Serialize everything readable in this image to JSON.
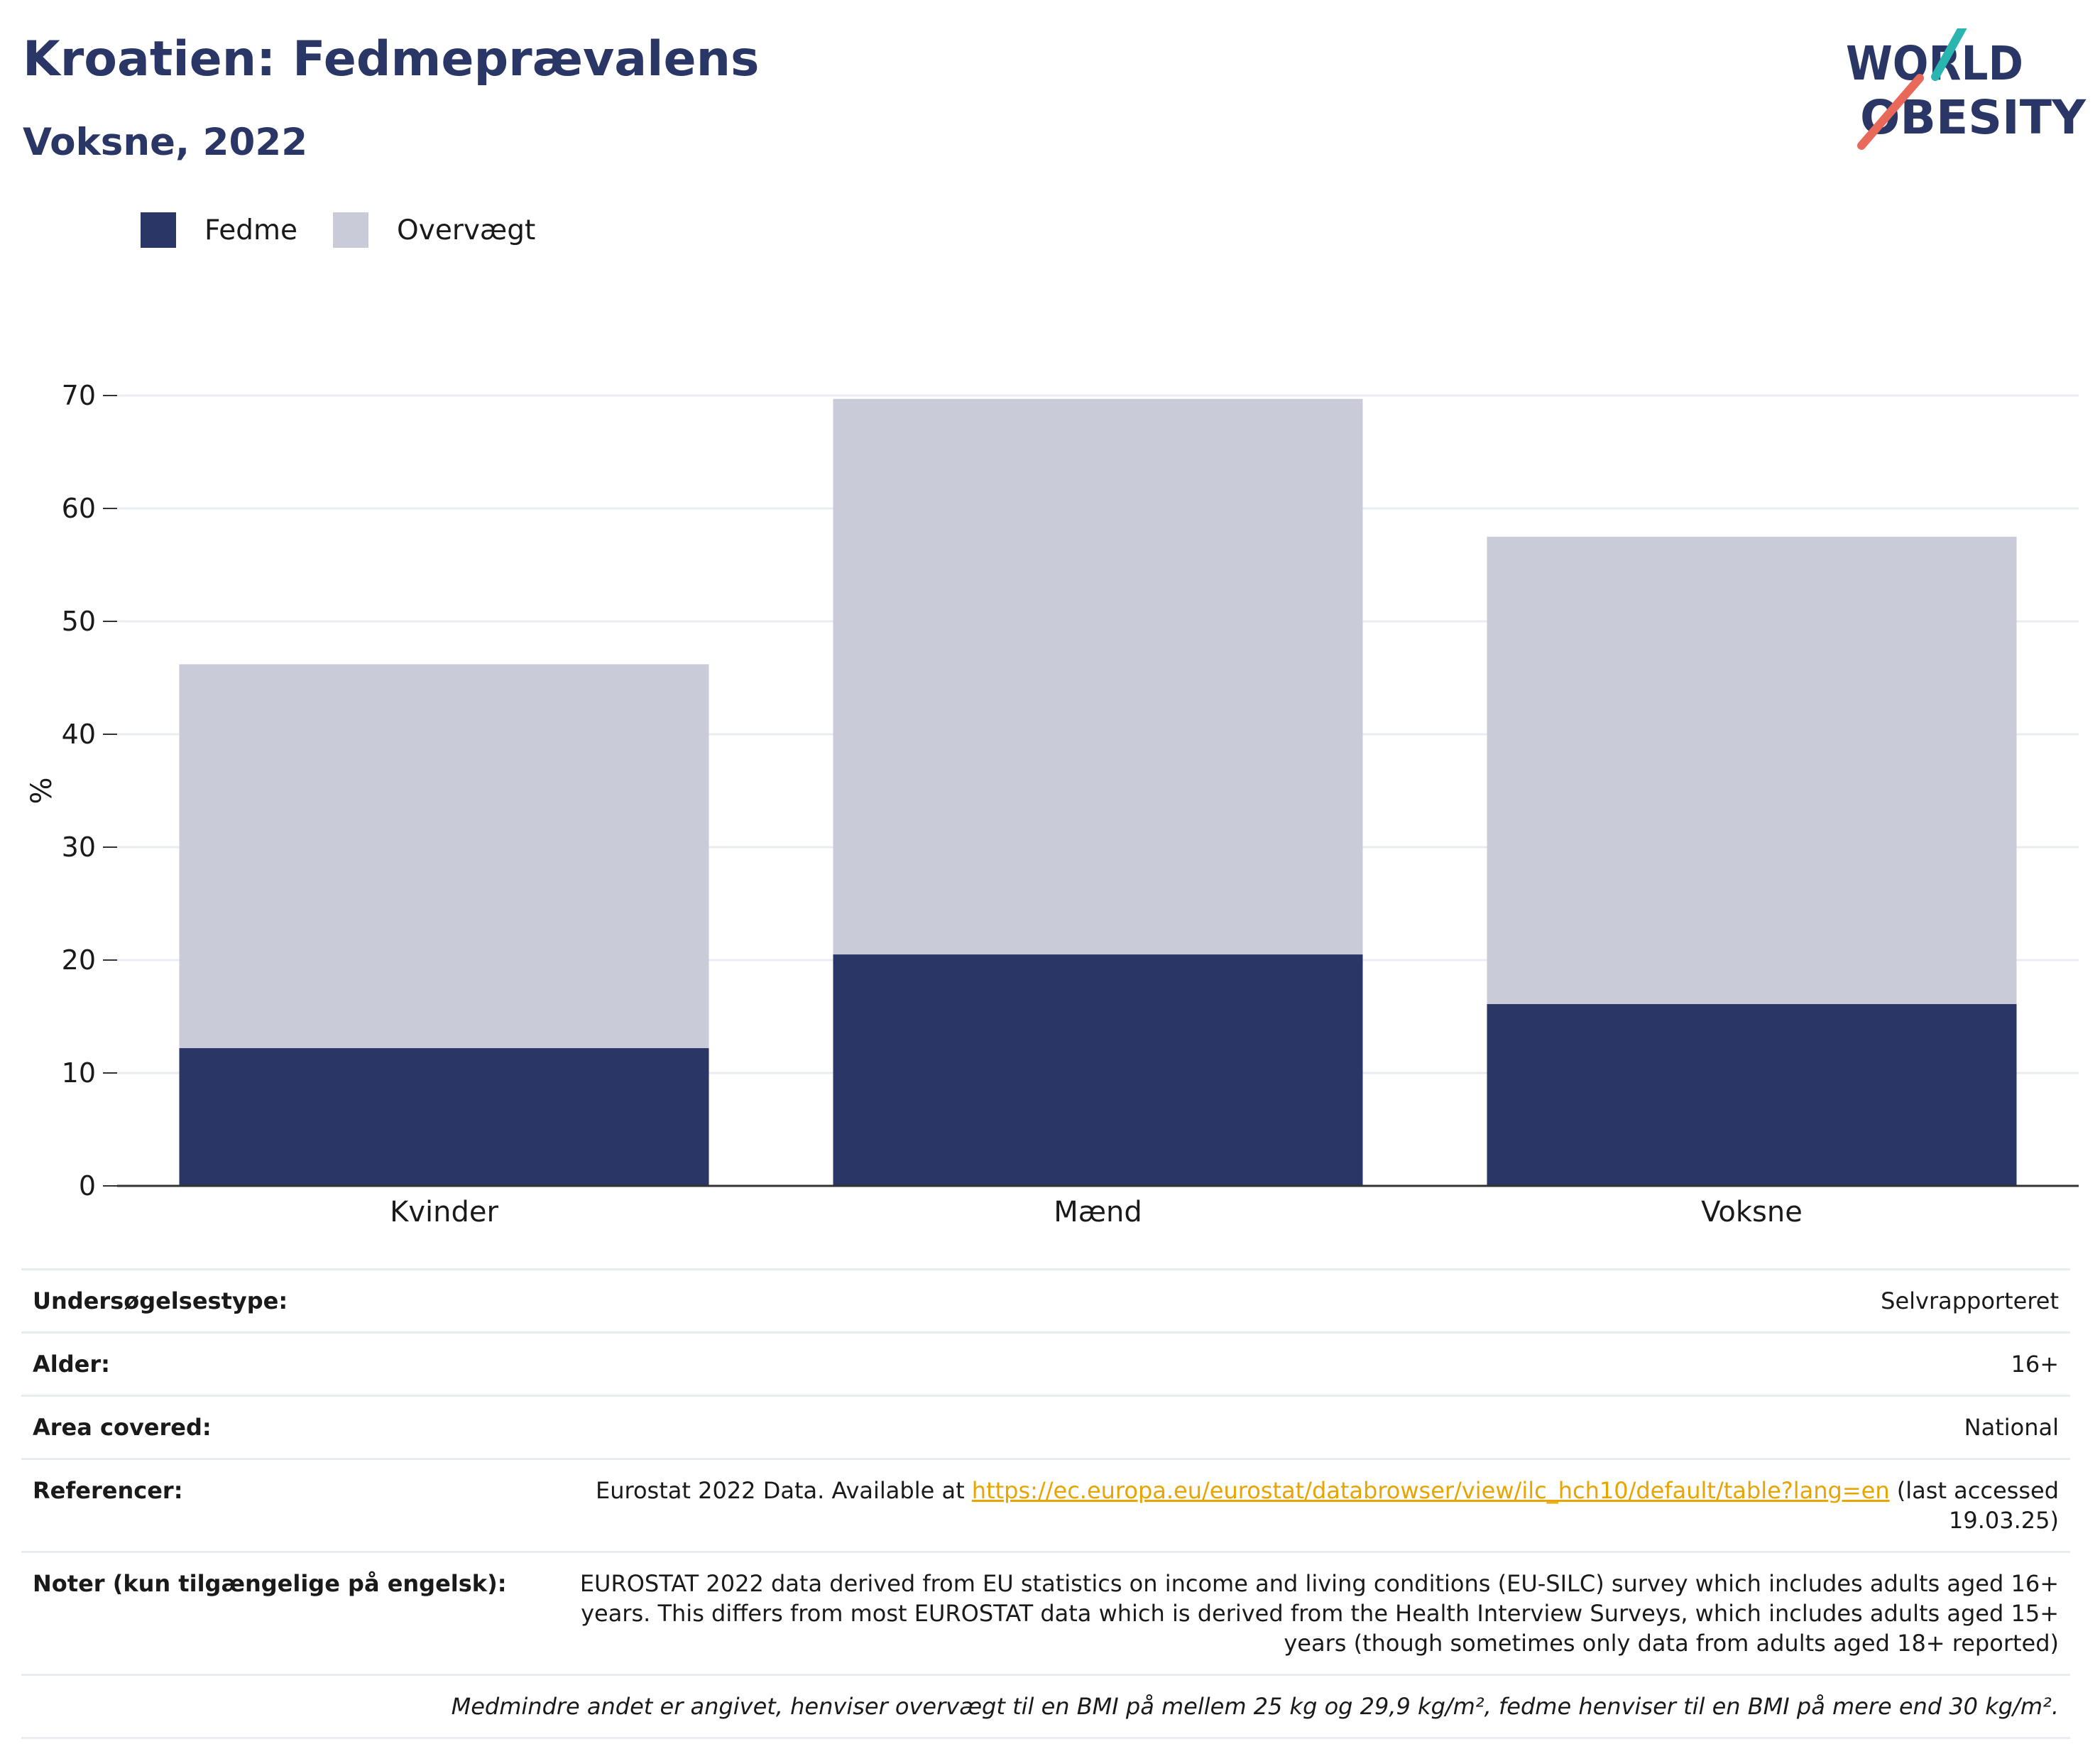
{
  "header": {
    "title": "Kroatien: Fedmeprævalens",
    "subtitle": "Voksne, 2022"
  },
  "logo": {
    "line1": "WORLD",
    "line2": "OBESITY",
    "colors": {
      "text": "#2a3665",
      "teal": "#2bb5b0",
      "coral": "#e8685a"
    }
  },
  "colors": {
    "obesity": "#2a3665",
    "overweight": "#c9ccd8",
    "grid": "#e9ecf3",
    "axis": "#333333"
  },
  "chart_data": {
    "type": "bar",
    "stacked": true,
    "categories": [
      "Kvinder",
      "Mænd",
      "Voksne"
    ],
    "series": [
      {
        "name": "Fedme",
        "values": [
          12.2,
          20.5,
          16.1
        ]
      },
      {
        "name": "Overvægt",
        "values": [
          34.0,
          49.2,
          41.4
        ]
      }
    ],
    "totals": [
      46.2,
      69.7,
      57.5
    ],
    "ylabel": "%",
    "ylim": [
      0,
      70
    ],
    "yticks": [
      0,
      10,
      20,
      30,
      40,
      50,
      60,
      70
    ],
    "grid": true,
    "legend": "top-left"
  },
  "info": {
    "rows": [
      {
        "label": "Undersøgelsestype:",
        "value": "Selvrapporteret"
      },
      {
        "label": "Alder:",
        "value": "16+"
      },
      {
        "label": "Area covered:",
        "value": "National"
      },
      {
        "label": "Referencer:",
        "value_before": "Eurostat 2022 Data. Available at ",
        "link": "https://ec.europa.eu/eurostat/databrowser/view/ilc_hch10/default/table?lang=en",
        "value_after": " (last accessed 19.03.25)"
      },
      {
        "label": "Noter (kun tilgængelige på engelsk):",
        "value": "EUROSTAT 2022 data derived from EU statistics on income and living conditions (EU-SILC) survey which includes adults aged 16+ years. This differs from most EUROSTAT data which is derived from the Health Interview Surveys, which includes adults aged 15+ years (though sometimes only data from adults aged 18+ reported)"
      }
    ],
    "footnote": "Medmindre andet er angivet, henviser overvægt til en BMI på mellem 25 kg og 29,9 kg/m², fedme henviser til en BMI på mere end 30 kg/m²."
  }
}
